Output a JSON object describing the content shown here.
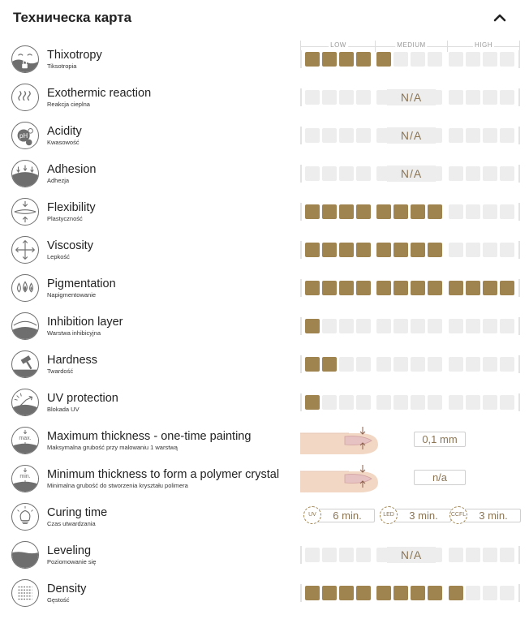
{
  "header": {
    "title": "Техническа карта"
  },
  "scale": {
    "low": "LOW",
    "medium": "MEDIUM",
    "high": "HIGH"
  },
  "colors": {
    "active": "#a0844f",
    "inactive": "#ededed",
    "text_accent": "#8b7554"
  },
  "rows": [
    {
      "name": "Thixotropy",
      "sub": "Tiksotropia",
      "icon": "thixotropy-icon",
      "level": 5,
      "of": 12
    },
    {
      "name": "Exothermic reaction",
      "sub": "Reakcja cieplna",
      "icon": "heat-icon",
      "na": "N/A"
    },
    {
      "name": "Acidity",
      "sub": "Kwasowość",
      "icon": "ph-icon",
      "na": "N/A"
    },
    {
      "name": "Adhesion",
      "sub": "Adhezja",
      "icon": "adhesion-icon",
      "na": "N/A"
    },
    {
      "name": "Flexibility",
      "sub": "Plastyczność",
      "icon": "flexibility-icon",
      "level": 8,
      "of": 12
    },
    {
      "name": "Viscosity",
      "sub": "Lepkość",
      "icon": "viscosity-icon",
      "level": 8,
      "of": 12
    },
    {
      "name": "Pigmentation",
      "sub": "Napigmentowanie",
      "icon": "pigment-drops-icon",
      "level": 12,
      "of": 12
    },
    {
      "name": "Inhibition layer",
      "sub": "Warstwa inhibicyjna",
      "icon": "inhibition-layer-icon",
      "level": 1,
      "of": 12
    },
    {
      "name": "Hardness",
      "sub": "Twardość",
      "icon": "hammer-icon",
      "level": 2,
      "of": 12
    },
    {
      "name": "UV protection",
      "sub": "Blokada UV",
      "icon": "uv-protection-icon",
      "level": 1,
      "of": 12
    },
    {
      "name": "Maximum thickness - one-time painting",
      "sub": "Maksymalna grubość przy malowaniu 1 warstwą",
      "icon": "max-thickness-icon",
      "icon_text": "max.",
      "value": "0,1 mm"
    },
    {
      "name": "Minimum thickness to form a polymer crystal",
      "sub": "Minimalna grubość do stworzenia kryształu polimera",
      "icon": "min-thickness-icon",
      "icon_text": "min.",
      "value": "n/a"
    },
    {
      "name": "Curing time",
      "sub": "Czas utwardzania",
      "icon": "lamp-icon",
      "curing": [
        {
          "lamp": "UV",
          "time": "6 min."
        },
        {
          "lamp": "LED",
          "time": "3 min."
        },
        {
          "lamp": "CCFL",
          "time": "3 min."
        }
      ]
    },
    {
      "name": "Leveling",
      "sub": "Poziomowanie się",
      "icon": "leveling-icon",
      "na": "N/A"
    },
    {
      "name": "Density",
      "sub": "Gęstość",
      "icon": "density-icon",
      "level": 9,
      "of": 12
    }
  ]
}
